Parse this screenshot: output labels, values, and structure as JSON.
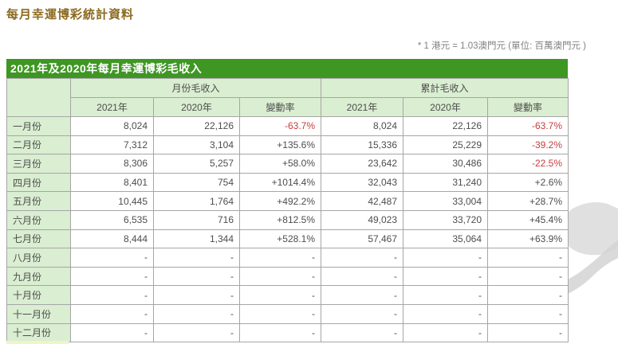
{
  "page": {
    "title": "每月幸運博彩統計資料",
    "exchange_note": "* 1 港元 = 1.03澳門元 (單位: 百萬澳門元 )"
  },
  "colors": {
    "title_text": "#8c691e",
    "header_bar_green": "#3e9623",
    "cell_light_green": "#daeed1",
    "negative_red": "#c83c3c",
    "border_gray": "#a6a6a6",
    "watermark_gray": "#d9d9d9"
  },
  "table": {
    "title": "2021年及2020年每月幸運博彩毛收入",
    "group_headers": [
      "月份毛收入",
      "累計毛收入"
    ],
    "column_headers": [
      "2021年",
      "2020年",
      "變動率",
      "2021年",
      "2020年",
      "變動率"
    ],
    "row_keys": [
      "month",
      "monthly_2021",
      "monthly_2020",
      "monthly_change",
      "cumulative_2021",
      "cumulative_2020",
      "cumulative_change"
    ],
    "rows": [
      {
        "month": "一月份",
        "monthly_2021": "8,024",
        "monthly_2020": "22,126",
        "monthly_change": "-63.7%",
        "cumulative_2021": "8,024",
        "cumulative_2020": "22,126",
        "cumulative_change": "-63.7%"
      },
      {
        "month": "二月份",
        "monthly_2021": "7,312",
        "monthly_2020": "3,104",
        "monthly_change": "+135.6%",
        "cumulative_2021": "15,336",
        "cumulative_2020": "25,229",
        "cumulative_change": "-39.2%"
      },
      {
        "month": "三月份",
        "monthly_2021": "8,306",
        "monthly_2020": "5,257",
        "monthly_change": "+58.0%",
        "cumulative_2021": "23,642",
        "cumulative_2020": "30,486",
        "cumulative_change": "-22.5%"
      },
      {
        "month": "四月份",
        "monthly_2021": "8,401",
        "monthly_2020": "754",
        "monthly_change": "+1014.4%",
        "cumulative_2021": "32,043",
        "cumulative_2020": "31,240",
        "cumulative_change": "+2.6%"
      },
      {
        "month": "五月份",
        "monthly_2021": "10,445",
        "monthly_2020": "1,764",
        "monthly_change": "+492.2%",
        "cumulative_2021": "42,487",
        "cumulative_2020": "33,004",
        "cumulative_change": "+28.7%"
      },
      {
        "month": "六月份",
        "monthly_2021": "6,535",
        "monthly_2020": "716",
        "monthly_change": "+812.5%",
        "cumulative_2021": "49,023",
        "cumulative_2020": "33,720",
        "cumulative_change": "+45.4%"
      },
      {
        "month": "七月份",
        "monthly_2021": "8,444",
        "monthly_2020": "1,344",
        "monthly_change": "+528.1%",
        "cumulative_2021": "57,467",
        "cumulative_2020": "35,064",
        "cumulative_change": "+63.9%"
      },
      {
        "month": "八月份",
        "monthly_2021": "-",
        "monthly_2020": "-",
        "monthly_change": "-",
        "cumulative_2021": "-",
        "cumulative_2020": "-",
        "cumulative_change": "-"
      },
      {
        "month": "九月份",
        "monthly_2021": "-",
        "monthly_2020": "-",
        "monthly_change": "-",
        "cumulative_2021": "-",
        "cumulative_2020": "-",
        "cumulative_change": "-"
      },
      {
        "month": "十月份",
        "monthly_2021": "-",
        "monthly_2020": "-",
        "monthly_change": "-",
        "cumulative_2021": "-",
        "cumulative_2020": "-",
        "cumulative_change": "-"
      },
      {
        "month": "十一月份",
        "monthly_2021": "-",
        "monthly_2020": "-",
        "monthly_change": "-",
        "cumulative_2021": "-",
        "cumulative_2020": "-",
        "cumulative_change": "-"
      },
      {
        "month": "十二月份",
        "monthly_2021": "-",
        "monthly_2020": "-",
        "monthly_change": "-",
        "cumulative_2021": "-",
        "cumulative_2020": "-",
        "cumulative_change": "-"
      }
    ]
  }
}
